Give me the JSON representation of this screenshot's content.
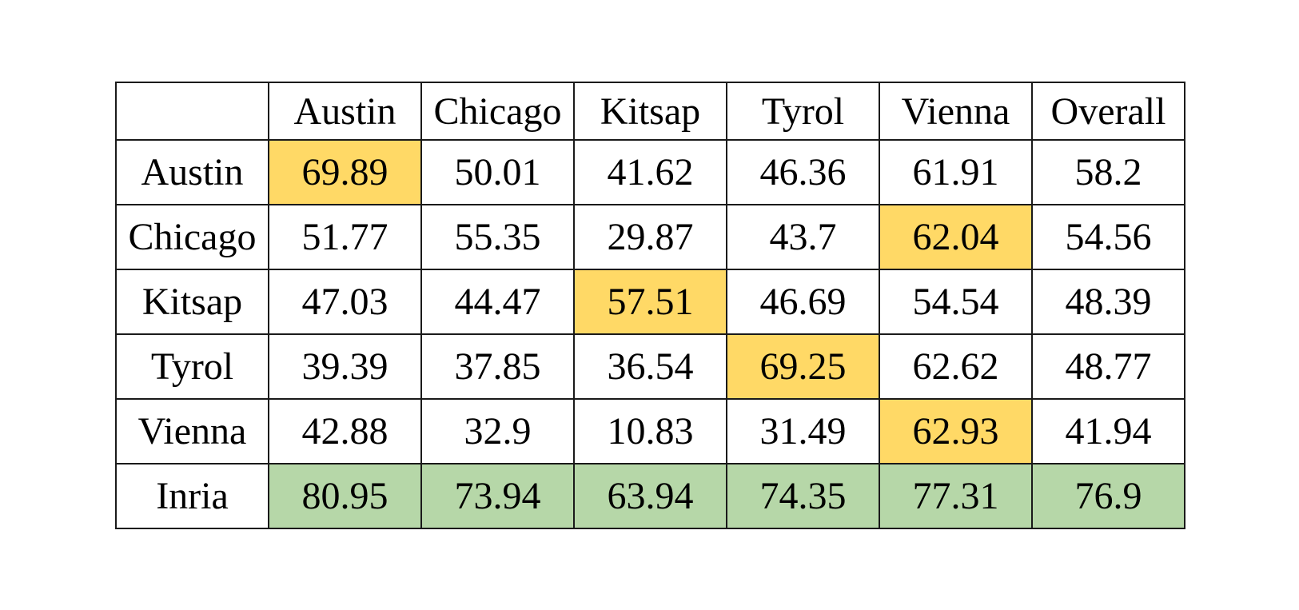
{
  "table": {
    "corner": "",
    "columns": [
      "Austin",
      "Chicago",
      "Kitsap",
      "Tyrol",
      "Vienna",
      "Overall"
    ],
    "rows": [
      {
        "label": "Austin",
        "values": [
          "69.89",
          "50.01",
          "41.62",
          "46.36",
          "61.91",
          "58.2"
        ],
        "highlight": [
          "best",
          "",
          "",
          "",
          "",
          ""
        ]
      },
      {
        "label": "Chicago",
        "values": [
          "51.77",
          "55.35",
          "29.87",
          "43.7",
          "62.04",
          "54.56"
        ],
        "highlight": [
          "",
          "",
          "",
          "",
          "best",
          ""
        ]
      },
      {
        "label": "Kitsap",
        "values": [
          "47.03",
          "44.47",
          "57.51",
          "46.69",
          "54.54",
          "48.39"
        ],
        "highlight": [
          "",
          "",
          "best",
          "",
          "",
          ""
        ]
      },
      {
        "label": "Tyrol",
        "values": [
          "39.39",
          "37.85",
          "36.54",
          "69.25",
          "62.62",
          "48.77"
        ],
        "highlight": [
          "",
          "",
          "",
          "best",
          "",
          ""
        ]
      },
      {
        "label": "Vienna",
        "values": [
          "42.88",
          "32.9",
          "10.83",
          "31.49",
          "62.93",
          "41.94"
        ],
        "highlight": [
          "",
          "",
          "",
          "",
          "best",
          ""
        ]
      },
      {
        "label": "Inria",
        "values": [
          "80.95",
          "73.94",
          "63.94",
          "74.35",
          "77.31",
          "76.9"
        ],
        "highlight": [
          "inria",
          "inria",
          "inria",
          "inria",
          "inria",
          "inria"
        ]
      }
    ]
  },
  "colors": {
    "best_cell": "#ffd966",
    "inria_row": "#b6d7a8",
    "border": "#1a1a1a"
  }
}
